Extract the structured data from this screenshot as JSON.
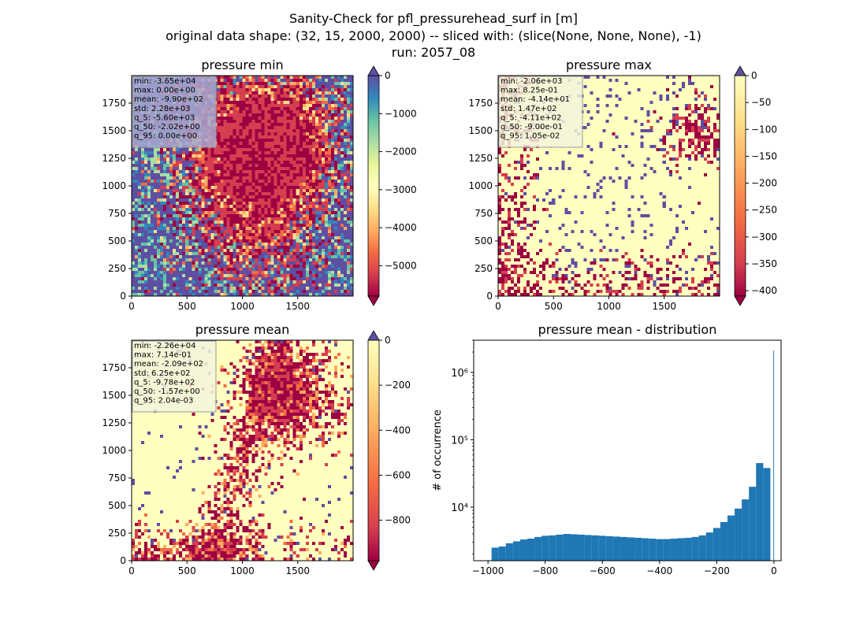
{
  "figure": {
    "title_lines": [
      "Sanity-Check for pfl_pressurehead_surf in [m]",
      "original data shape: (32, 15, 2000, 2000) -- sliced with: (slice(None, None, None), -1)",
      "run: 2057_08"
    ]
  },
  "chart_data": [
    {
      "type": "heatmap",
      "title": "pressure min",
      "xlim": [
        0,
        2000
      ],
      "ylim": [
        0,
        2000
      ],
      "xticks": [
        "0",
        "500",
        "1000",
        "1500"
      ],
      "yticks": [
        "0",
        "250",
        "500",
        "750",
        "1000",
        "1250",
        "1500",
        "1750"
      ],
      "colormap": "Spectral",
      "colorbar": {
        "vmin": -5800,
        "vmax": 0,
        "ticks": [
          "0",
          "−1000",
          "−2000",
          "−3000",
          "−4000",
          "−5000"
        ],
        "extend": "both"
      },
      "stats": [
        "min: -3.65e+04",
        "max: 0.00e+00",
        "mean: -9.90e+02",
        "std: 2.28e+03",
        "q_5: -5.60e+03",
        "q_50: -2.02e+00",
        "q_95: 0.00e+00"
      ],
      "stats_box_color": "#a8a8d0"
    },
    {
      "type": "heatmap",
      "title": "pressure max",
      "xlim": [
        0,
        2000
      ],
      "ylim": [
        0,
        2000
      ],
      "xticks": [
        "0",
        "500",
        "1000",
        "1500"
      ],
      "yticks": [
        "0",
        "250",
        "500",
        "750",
        "1000",
        "1250",
        "1500",
        "1750"
      ],
      "colormap": "Spectral",
      "colorbar": {
        "vmin": -410,
        "vmax": 0,
        "ticks": [
          "0",
          "−50",
          "−100",
          "−150",
          "−200",
          "−250",
          "−300",
          "−350",
          "−400"
        ],
        "extend": "both"
      },
      "stats": [
        "min: -2.06e+03",
        "max: 8.25e-01",
        "mean: -4.14e+01",
        "std: 1.47e+02",
        "q_5: -4.11e+02",
        "q_50: -9.00e-01",
        "q_95: 1.05e-02"
      ],
      "stats_box_color": "#f3f3dc"
    },
    {
      "type": "heatmap",
      "title": "pressure mean",
      "xlim": [
        0,
        2000
      ],
      "ylim": [
        0,
        2000
      ],
      "xticks": [
        "0",
        "500",
        "1000",
        "1500"
      ],
      "yticks": [
        "0",
        "250",
        "500",
        "750",
        "1000",
        "1250",
        "1500",
        "1750"
      ],
      "colormap": "Spectral",
      "colorbar": {
        "vmin": -980,
        "vmax": 0,
        "ticks": [
          "0",
          "−200",
          "−400",
          "−600",
          "−800"
        ],
        "extend": "both"
      },
      "stats": [
        "min: -2.26e+04",
        "max: 7.14e-01",
        "mean: -2.09e+02",
        "std: 6.25e+02",
        "q_5: -9.78e+02",
        "q_50: -1.57e+00",
        "q_95: 2.04e-03"
      ],
      "stats_box_color": "#f3f3dc"
    },
    {
      "type": "bar",
      "title": "pressure mean - distribution",
      "xlabel": "",
      "ylabel": "# of occurrence",
      "ylog": true,
      "xlim": [
        -1050,
        25
      ],
      "ylim": [
        1600,
        3000000
      ],
      "xticks": [
        -1000,
        -800,
        -600,
        -400,
        -200,
        0
      ],
      "xtick_labels": [
        "−1000",
        "−800",
        "−600",
        "−400",
        "−200",
        "0"
      ],
      "yticks": [
        10000,
        100000,
        1000000
      ],
      "ytick_labels": [
        "10⁴",
        "10⁵",
        "10⁶"
      ],
      "bar_color": "#1f77b4",
      "x": [
        -975,
        -950,
        -925,
        -900,
        -875,
        -850,
        -825,
        -800,
        -775,
        -750,
        -725,
        -700,
        -675,
        -650,
        -625,
        -600,
        -575,
        -550,
        -525,
        -500,
        -475,
        -450,
        -425,
        -400,
        -375,
        -350,
        -325,
        -300,
        -275,
        -250,
        -225,
        -200,
        -175,
        -150,
        -125,
        -100,
        -75,
        -50,
        -25,
        0
      ],
      "values": [
        2500,
        2600,
        2900,
        3100,
        3300,
        3400,
        3600,
        3750,
        3800,
        3900,
        4000,
        3950,
        3900,
        3850,
        3800,
        3750,
        3700,
        3650,
        3600,
        3550,
        3500,
        3450,
        3400,
        3350,
        3350,
        3400,
        3450,
        3500,
        3600,
        3800,
        4200,
        4900,
        6000,
        7500,
        9500,
        13000,
        20000,
        45000,
        38000,
        2100000
      ]
    }
  ]
}
